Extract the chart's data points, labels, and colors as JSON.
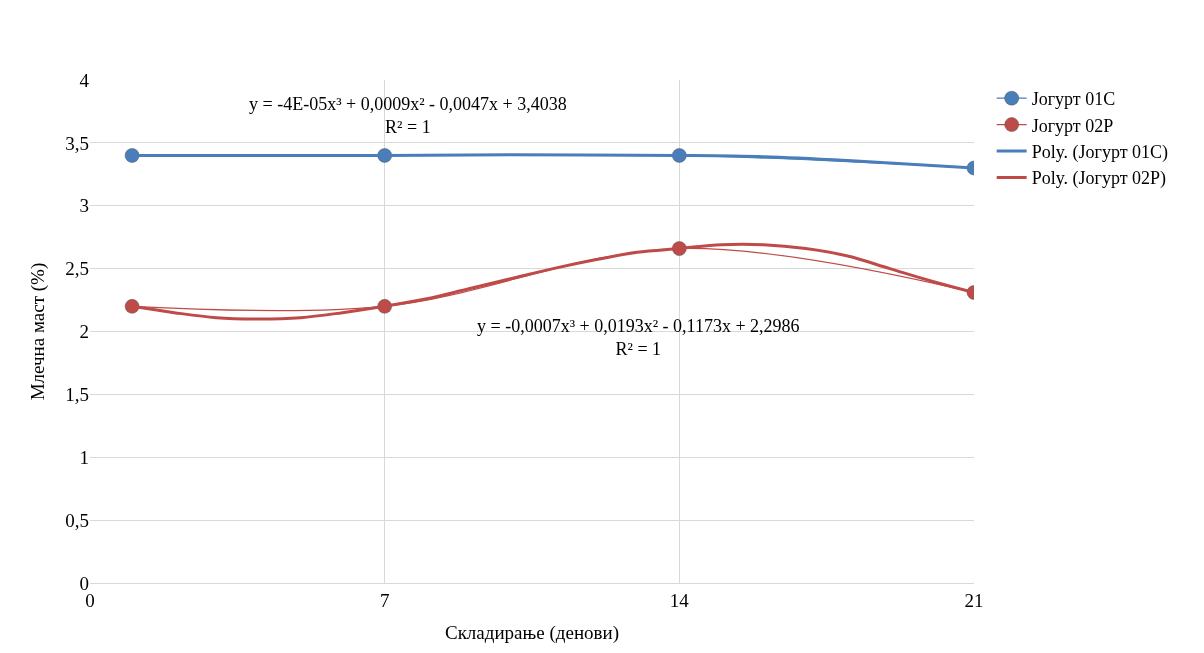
{
  "chart_data": {
    "type": "line",
    "xlabel": "Складирање (денови)",
    "ylabel": "Млечна маст (%)",
    "xlim": [
      0,
      21
    ],
    "xticks": [
      0,
      7,
      14,
      21
    ],
    "ylim": [
      0,
      4
    ],
    "yticks": [
      0,
      {
        "value": 0.5,
        "label": "0,5"
      },
      1,
      {
        "value": 1.5,
        "label": "1,5"
      },
      2,
      {
        "value": 2.5,
        "label": "2,5"
      },
      3,
      {
        "value": 3.5,
        "label": "3,5"
      },
      4
    ],
    "grid": true,
    "legend": "right",
    "annotations": [
      "y = -4E-05x³ + 0,0009x² - 0,0047x + 3,4038\nR² = 1",
      "y = -0,0007x³ + 0,0193x² - 0,1173x + 2,2986\nR² = 1"
    ],
    "series": [
      {
        "name": "Јогурт 01С",
        "color": "#4a7ebb",
        "marker": "circle",
        "x": [
          1,
          7,
          14,
          21
        ],
        "values": [
          3.4,
          3.4,
          3.4,
          3.3
        ]
      },
      {
        "name": "Јогурт 02Р",
        "color": "#be4b48",
        "marker": "circle",
        "x": [
          1,
          7,
          14,
          21
        ],
        "values": [
          2.2,
          2.2,
          2.66,
          2.31
        ]
      },
      {
        "name": "Poly. (Јогурт 01С)",
        "color": "#4a7ebb",
        "marker": "none",
        "x": [
          1,
          4,
          7,
          10,
          14,
          16,
          18,
          21
        ],
        "values": [
          3.4,
          3.4,
          3.4,
          3.405,
          3.4,
          3.39,
          3.36,
          3.3
        ]
      },
      {
        "name": "Poly. (Јогурт 02Р)",
        "color": "#be4b48",
        "marker": "none",
        "x": [
          1,
          2,
          3,
          4,
          5,
          6,
          7,
          8,
          9,
          10,
          11,
          12,
          13,
          14,
          15,
          16,
          17,
          18,
          19,
          20,
          21
        ],
        "values": [
          2.2,
          2.15,
          2.11,
          2.1,
          2.11,
          2.15,
          2.2,
          2.26,
          2.34,
          2.42,
          2.5,
          2.57,
          2.63,
          2.66,
          2.69,
          2.69,
          2.66,
          2.6,
          2.5,
          2.4,
          2.31
        ]
      }
    ]
  }
}
